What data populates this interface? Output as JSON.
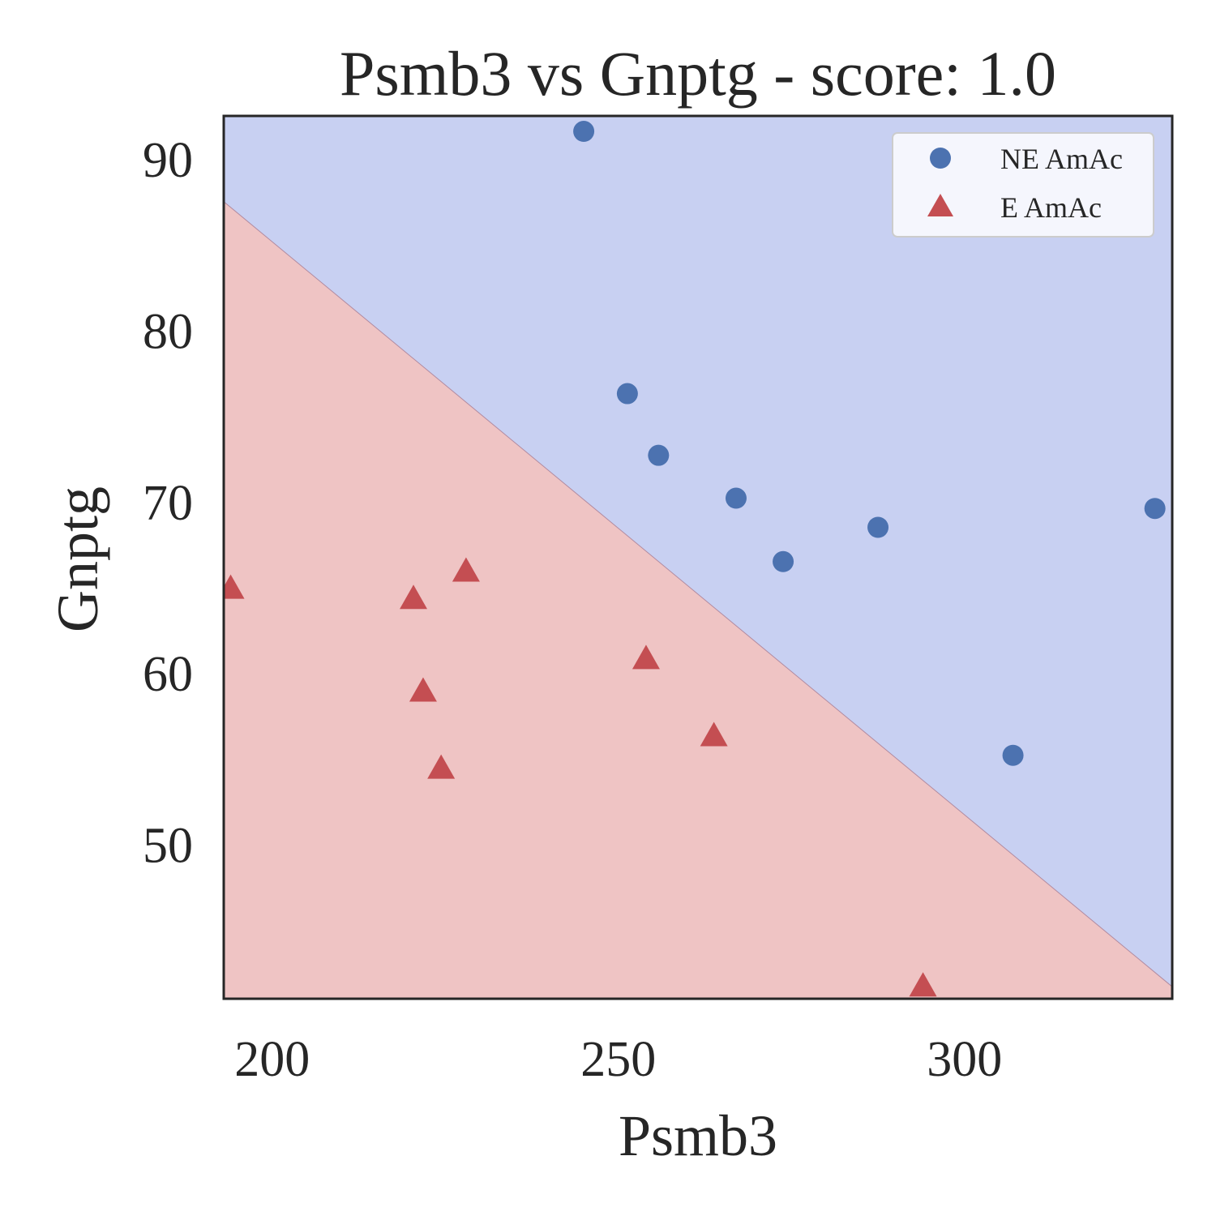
{
  "chart_data": {
    "type": "scatter",
    "title": "Psmb3 vs Gnptg - score: 1.0",
    "xlabel": "Psmb3",
    "ylabel": "Gnptg",
    "xlim": [
      193,
      330
    ],
    "ylim": [
      41,
      92.5
    ],
    "xticks": [
      200,
      250,
      300
    ],
    "yticks": [
      50,
      60,
      70,
      80,
      90
    ],
    "grid": false,
    "legend": "top-right",
    "decision_boundary": [
      [
        193,
        87.5
      ],
      [
        330,
        41.7
      ]
    ],
    "regions": {
      "above": {
        "color": "#c8d0f2"
      },
      "below": {
        "color": "#efc4c4"
      }
    },
    "series": [
      {
        "name": "NE AmAc",
        "marker": "circle",
        "color": "#4c72b0",
        "points": [
          [
            245,
            91.6
          ],
          [
            251.3,
            76.3
          ],
          [
            255.8,
            72.7
          ],
          [
            267,
            70.2
          ],
          [
            273.8,
            66.5
          ],
          [
            287.5,
            68.5
          ],
          [
            307,
            55.2
          ],
          [
            327.5,
            69.6
          ]
        ]
      },
      {
        "name": "E AmAc",
        "marker": "triangle",
        "color": "#c44e52",
        "points": [
          [
            194,
            64.9
          ],
          [
            220.4,
            64.3
          ],
          [
            221.8,
            58.9
          ],
          [
            224.4,
            54.4
          ],
          [
            228,
            65.9
          ],
          [
            254,
            60.8
          ],
          [
            263.8,
            56.3
          ],
          [
            294,
            41.7
          ]
        ]
      }
    ]
  }
}
